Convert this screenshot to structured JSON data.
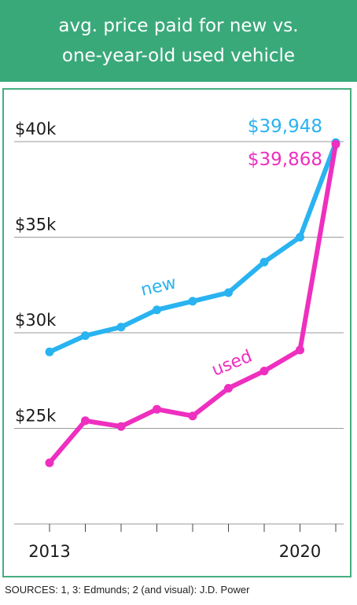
{
  "title_lines": [
    "avg. price paid for new vs.",
    "one-year-old used vehicle"
  ],
  "source": "SOURCES: 1, 3: Edmunds; 2 (and visual): J.D. Power",
  "colors": {
    "header": "#3aa97a",
    "new": "#29b3f0",
    "used": "#ee2fbf",
    "grid": "#9a9a9a"
  },
  "chart_data": {
    "type": "line",
    "title": "avg. price paid for new vs. one-year-old used vehicle",
    "x": [
      2013,
      2014,
      2015,
      2016,
      2017,
      2018,
      2019,
      2020,
      2021
    ],
    "x_tick_labels": [
      {
        "x": 2013,
        "label": "2013"
      },
      {
        "x": 2020,
        "label": "2020"
      }
    ],
    "y_ticks": [
      {
        "value": 20000,
        "label": ""
      },
      {
        "value": 25000,
        "label": "$25k"
      },
      {
        "value": 30000,
        "label": "$30k"
      },
      {
        "value": 35000,
        "label": "$35k"
      },
      {
        "value": 40000,
        "label": "$40k"
      }
    ],
    "ylim": [
      20000,
      40000
    ],
    "grid": true,
    "series": [
      {
        "name": "new",
        "values": [
          29000,
          29850,
          30300,
          31200,
          31650,
          32100,
          33700,
          35000,
          39948
        ],
        "end_label": "$39,948"
      },
      {
        "name": "used",
        "values": [
          23200,
          25400,
          25100,
          26000,
          25650,
          27100,
          28000,
          29100,
          39868
        ],
        "end_label": "$39,868"
      }
    ]
  }
}
